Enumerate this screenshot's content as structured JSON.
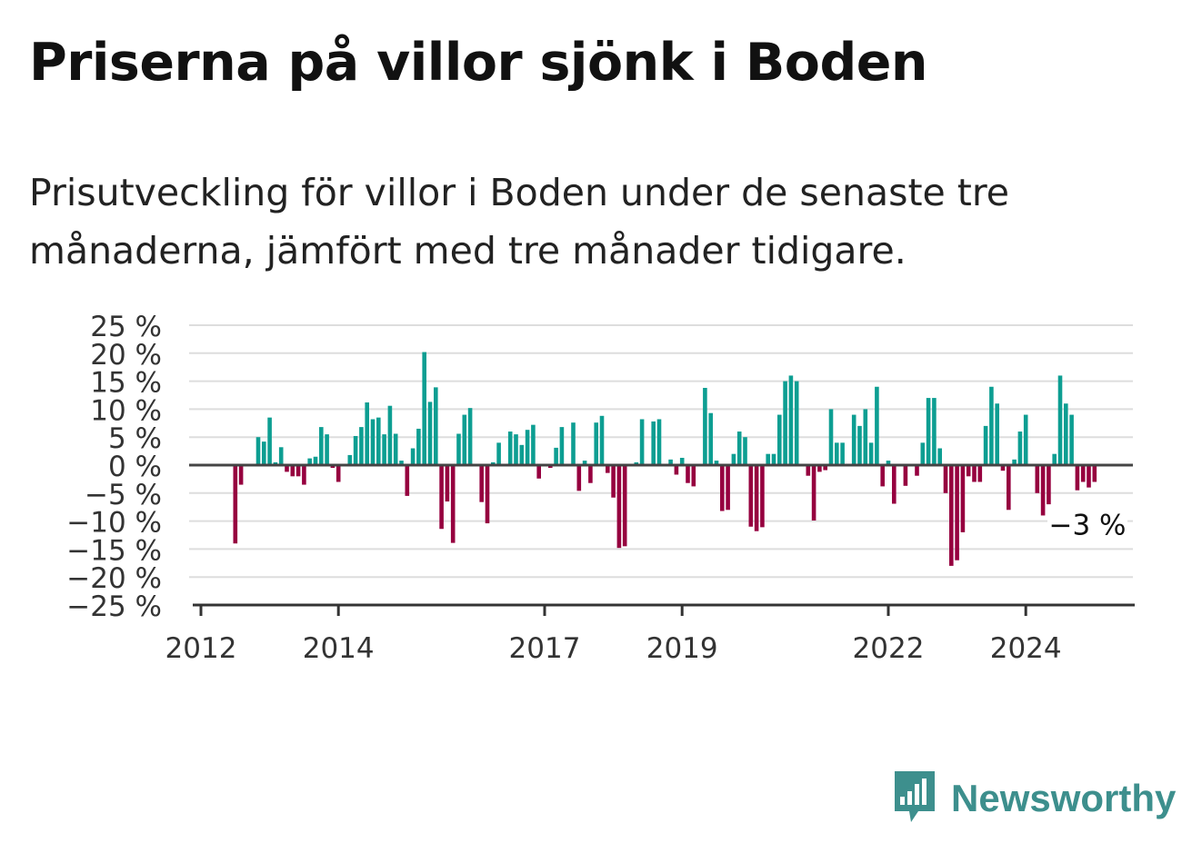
{
  "title": "Priserna på villor sjönk i Boden",
  "subtitle": "Prisutveckling för villor i Boden under de senaste tre månaderna, jämfört med tre månader tidigare.",
  "brand": {
    "name": "Newsworthy",
    "color": "#3d8f8d",
    "icon": "newsworthy-bars-icon"
  },
  "colors": {
    "positive": "#0d9e92",
    "negative": "#96003f",
    "gridline": "#dddddd",
    "zero_line": "#444444"
  },
  "chart_data": {
    "type": "bar",
    "title": "",
    "xlabel": "",
    "ylabel": "",
    "ylim": [
      -25,
      25
    ],
    "y_ticks": [
      "25 %",
      "20 %",
      "15 %",
      "10 %",
      "5 %",
      "0 %",
      "−5 %",
      "−10 %",
      "−15 %",
      "−20 %",
      "−25 %"
    ],
    "y_tick_values": [
      25,
      20,
      15,
      10,
      5,
      0,
      -5,
      -10,
      -15,
      -20,
      -25
    ],
    "x_ticks": [
      {
        "label": "2012",
        "month": "2012-01"
      },
      {
        "label": "2014",
        "month": "2014-01"
      },
      {
        "label": "2017",
        "month": "2017-01"
      },
      {
        "label": "2019",
        "month": "2019-01"
      },
      {
        "label": "2022",
        "month": "2022-01"
      },
      {
        "label": "2024",
        "month": "2024-01"
      }
    ],
    "grid": true,
    "start_month": "2012-07",
    "values": [
      -14,
      -3.5,
      0,
      0,
      5,
      4.2,
      8.5,
      0.5,
      3.2,
      -1.2,
      -2,
      -2,
      -3.5,
      1.2,
      1.5,
      6.8,
      5.5,
      -0.5,
      -3,
      0,
      1.8,
      5.2,
      6.8,
      11.2,
      8.2,
      8.5,
      5.5,
      10.6,
      5.6,
      0.8,
      -5.5,
      3,
      6.5,
      20.2,
      11.3,
      13.9,
      -11.4,
      -6.5,
      -13.9,
      5.6,
      9,
      10.2,
      0,
      -6.6,
      -10.4,
      0.5,
      4,
      0,
      6,
      5.5,
      3.6,
      6.3,
      7.2,
      -2.4,
      0,
      -0.5,
      3.1,
      6.8,
      0,
      7.6,
      -4.6,
      0.8,
      -3.2,
      7.6,
      8.8,
      -1.4,
      -5.8,
      -14.8,
      -14.5,
      0,
      0.5,
      8.2,
      0,
      7.8,
      8.2,
      0,
      1,
      -1.7,
      1.3,
      -3.2,
      -3.8,
      0,
      13.8,
      9.3,
      0.8,
      -8.2,
      -8,
      2,
      6,
      5,
      -11,
      -11.8,
      -11.1,
      2,
      2,
      9,
      15,
      16,
      15,
      0,
      -1.9,
      -9.9,
      -1.2,
      -0.9,
      10,
      4,
      4,
      0,
      9,
      7,
      10,
      4,
      14,
      -3.8,
      0.8,
      -6.9,
      0,
      -3.7,
      0,
      -1.9,
      4,
      12,
      12,
      3,
      -5,
      -18,
      -17,
      -12,
      -2,
      -3,
      -3,
      7,
      14,
      11,
      -1,
      -8,
      1,
      6,
      9,
      0,
      -5,
      -9,
      -7,
      2,
      16,
      11,
      9,
      -4.5,
      -3,
      -4,
      -3
    ],
    "annotation": {
      "label": "−3 %",
      "value": -3,
      "month": "2024-10"
    }
  }
}
